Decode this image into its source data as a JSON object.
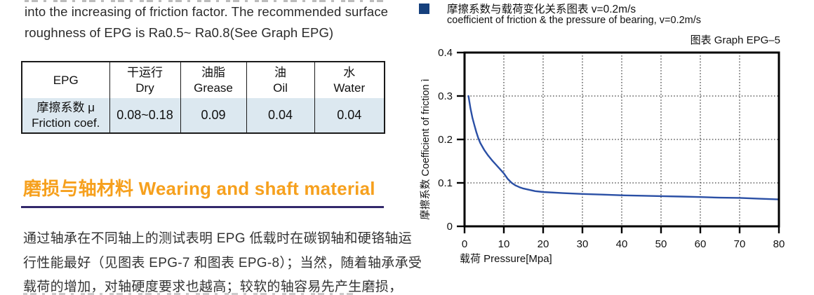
{
  "left_column": {
    "intro_lines": [
      "into the increasing of friction factor. The recommended surface",
      "roughness of EPG is Ra0.5~ Ra0.8(See Graph EPG)"
    ],
    "friction_table": {
      "headers": [
        {
          "cn": "EPG",
          "en": ""
        },
        {
          "cn": "干运行",
          "en": "Dry"
        },
        {
          "cn": "油脂",
          "en": "Grease"
        },
        {
          "cn": "油",
          "en": "Oil"
        },
        {
          "cn": "水",
          "en": "Water"
        }
      ],
      "row_label": {
        "cn": "摩擦系数 μ",
        "en": "Friction coef."
      },
      "values": [
        "0.08~0.18",
        "0.09",
        "0.04",
        "0.04"
      ]
    },
    "section_heading": "磨损与轴材料  Wearing and shaft material",
    "body_lines": [
      "通过轴承在不同轴上的测试表明 EPG 低载时在碳钢轴和硬铬轴运",
      "行性能最好（见图表 EPG-7 和图表 EPG-8）；当然，随着轴承承受",
      "载荷的增加，对轴硬度要求也越高；较软的轴容易先产生磨损，"
    ]
  },
  "chart_data": {
    "type": "line",
    "title_cn": "摩擦系数与载荷变化关系图表 v=0.2m/s",
    "title_en": "coefficient of friction &  the pressure of bearing, v=0.2m/s",
    "caption": "图表 Graph EPG–5",
    "xlabel": "载荷  Pressure[Mpa]",
    "ylabel": "摩擦系数  Coefficient of friction ì",
    "xlim": [
      0,
      80
    ],
    "ylim": [
      0,
      0.4
    ],
    "xticks": [
      0,
      10,
      20,
      30,
      40,
      50,
      60,
      70,
      80
    ],
    "yticks": [
      0,
      0.1,
      0.2,
      0.3,
      0.4
    ],
    "grid": "dotted",
    "legend_position": "none",
    "line_color": "#2A4FA5",
    "series": [
      {
        "name": "coefficient of friction vs pressure, v=0.2m/s",
        "points": [
          [
            1,
            0.3
          ],
          [
            1.5,
            0.272
          ],
          [
            2,
            0.25
          ],
          [
            2.5,
            0.233
          ],
          [
            3,
            0.217
          ],
          [
            3.5,
            0.203
          ],
          [
            4,
            0.192
          ],
          [
            5,
            0.176
          ],
          [
            6,
            0.163
          ],
          [
            7,
            0.152
          ],
          [
            8,
            0.142
          ],
          [
            9,
            0.132
          ],
          [
            10,
            0.122
          ],
          [
            11,
            0.109
          ],
          [
            12,
            0.1
          ],
          [
            13,
            0.094
          ],
          [
            14,
            0.09
          ],
          [
            15,
            0.087
          ],
          [
            16,
            0.085
          ],
          [
            18,
            0.081
          ],
          [
            20,
            0.079
          ],
          [
            25,
            0.0765
          ],
          [
            30,
            0.0745
          ],
          [
            35,
            0.073
          ],
          [
            40,
            0.0715
          ],
          [
            45,
            0.0705
          ],
          [
            50,
            0.0695
          ],
          [
            55,
            0.0685
          ],
          [
            60,
            0.0675
          ],
          [
            65,
            0.066
          ],
          [
            70,
            0.0655
          ],
          [
            75,
            0.0635
          ],
          [
            80,
            0.062
          ]
        ]
      }
    ]
  },
  "colors": {
    "accent_orange": "#F6A01D",
    "divider_navy": "#32286B",
    "legend_bullet_navy": "#15407D",
    "curve_blue": "#2A4FA5",
    "table_row_bg": "#dce8f0"
  }
}
